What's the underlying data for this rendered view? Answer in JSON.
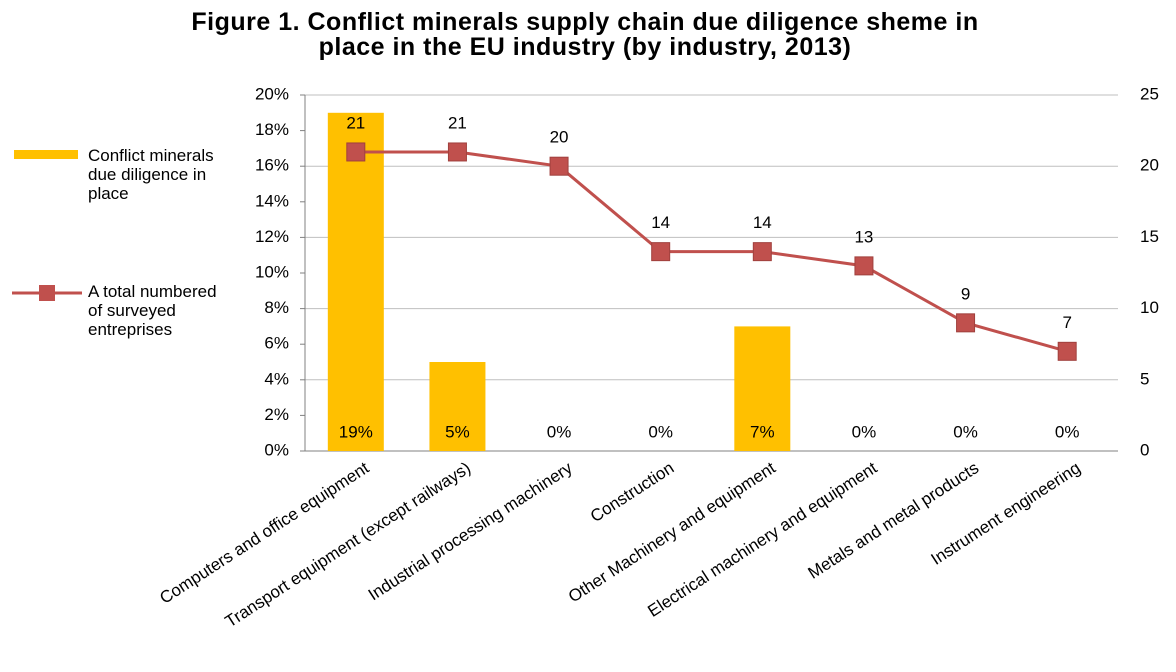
{
  "chart_data": {
    "type": "bar_line",
    "title": "Figure 1. Conflict minerals supply chain due diligence sheme in place in the EU industry (by industry, 2013)",
    "categories": [
      "Computers and office equipment",
      "Transport equipment (except railways)",
      "Industrial processing machinery",
      "Construction",
      "Other Machinery and equipment",
      "Electrical machinery and equipment",
      "Metals and metal products",
      "Instrument engineering"
    ],
    "series": [
      {
        "name": "Conflict minerals due diligence in place",
        "type": "bar",
        "color": "#ffc000",
        "axis": "y",
        "values": [
          19,
          5,
          0,
          0,
          7,
          0,
          0,
          0
        ],
        "value_labels": [
          "19%",
          "5%",
          "0%",
          "0%",
          "7%",
          "0%",
          "0%",
          "0%"
        ]
      },
      {
        "name": "A total numbered of surveyed entreprises",
        "type": "line",
        "color": "#c0504d",
        "axis": "y2",
        "values": [
          21,
          21,
          20,
          14,
          14,
          13,
          9,
          7
        ]
      }
    ],
    "ylim": [
      0,
      20
    ],
    "yticks": [
      {
        "value": 0,
        "label": "0%"
      },
      {
        "value": 2,
        "label": "2%"
      },
      {
        "value": 4,
        "label": "4%"
      },
      {
        "value": 6,
        "label": "6%"
      },
      {
        "value": 8,
        "label": "8%"
      },
      {
        "value": 10,
        "label": "10%"
      },
      {
        "value": 12,
        "label": "12%"
      },
      {
        "value": 14,
        "label": "14%"
      },
      {
        "value": 16,
        "label": "16%"
      },
      {
        "value": 18,
        "label": "18%"
      },
      {
        "value": 20,
        "label": "20%"
      }
    ],
    "y2lim": [
      0,
      25
    ],
    "y2ticks": [
      0,
      5,
      10,
      15,
      20,
      25
    ],
    "grid": true,
    "legend": "left"
  }
}
